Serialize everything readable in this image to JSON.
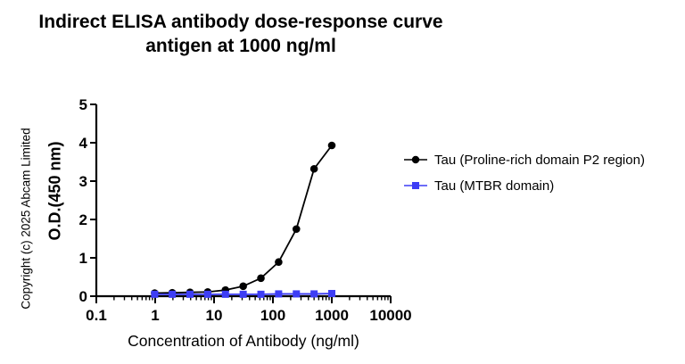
{
  "chart_data": {
    "type": "line",
    "title": "Indirect ELISA antibody dose-response curve",
    "subtitle": "antigen at 1000 ng/ml",
    "xlabel": "Concentration of Antibody (ng/ml)",
    "ylabel": "O.D.(450 nm)",
    "x_scale": "log10",
    "xlim": [
      0.1,
      10000
    ],
    "ylim": [
      0,
      5
    ],
    "x_ticks": [
      "0.1",
      "1",
      "10",
      "100",
      "1000",
      "10000"
    ],
    "y_ticks": [
      "0",
      "1",
      "2",
      "3",
      "4",
      "5"
    ],
    "grid": false,
    "legend_position": "right",
    "x": [
      0.98,
      1.95,
      3.9,
      7.8,
      15.6,
      31.25,
      62.5,
      125,
      250,
      500,
      1000
    ],
    "series": [
      {
        "name": "Tau (Proline-rich domain P2 region)",
        "marker": "circle",
        "color": "#000000",
        "values": [
          0.08,
          0.09,
          0.1,
          0.11,
          0.16,
          0.26,
          0.47,
          0.89,
          1.75,
          3.32,
          3.93
        ]
      },
      {
        "name": "Tau (MTBR domain)",
        "marker": "square",
        "color": "#3d3df5",
        "values": [
          0.05,
          0.05,
          0.05,
          0.05,
          0.05,
          0.05,
          0.05,
          0.06,
          0.06,
          0.06,
          0.07
        ]
      }
    ]
  },
  "copyright": "Copyright (c) 2025 Abcam Limited"
}
